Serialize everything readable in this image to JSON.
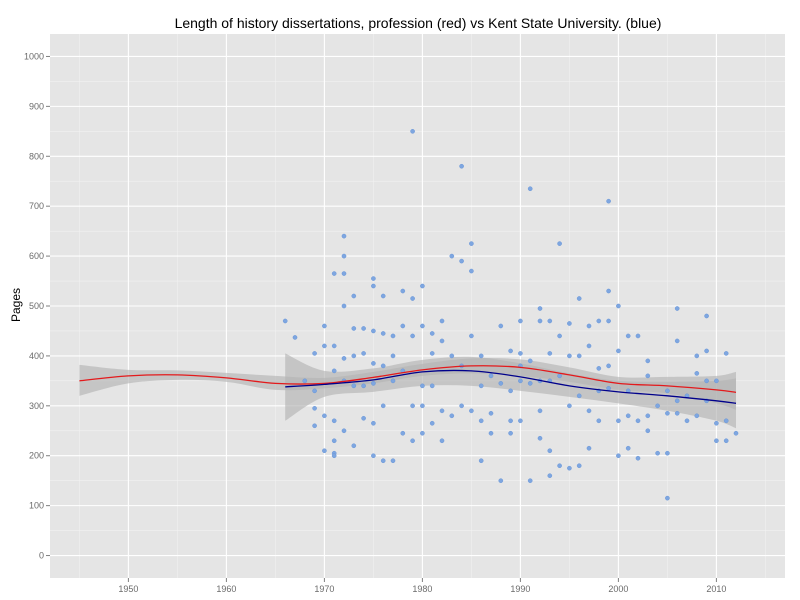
{
  "chart_data": {
    "type": "scatter",
    "title": "Length of history dissertations, profession (red) vs Kent State University. (blue)",
    "xlabel": "",
    "ylabel": "Pages",
    "xlim": [
      1942,
      2017
    ],
    "ylim": [
      -45,
      1045
    ],
    "x_ticks": [
      1950,
      1960,
      1970,
      1980,
      1990,
      2000,
      2010
    ],
    "y_ticks": [
      0,
      100,
      200,
      300,
      400,
      500,
      600,
      700,
      800,
      900,
      1000
    ],
    "grid": true,
    "legend": "none",
    "colors": {
      "panel_background": "#e5e5e5",
      "grid_major": "#ffffff",
      "grid_minor": "#f2f2f2",
      "points": "#7ea6e0",
      "profession_line": "#e31a1c",
      "kent_state_line": "#00008b",
      "confidence_band": "#b3b3b3"
    },
    "series": [
      {
        "key": "kent_state_points",
        "mark": "points",
        "x": [
          1966,
          1967,
          1968,
          1969,
          1969,
          1969,
          1969,
          1970,
          1970,
          1970,
          1970,
          1971,
          1971,
          1971,
          1971,
          1971,
          1971,
          1971,
          1972,
          1972,
          1972,
          1972,
          1972,
          1972,
          1972,
          1973,
          1973,
          1973,
          1973,
          1973,
          1974,
          1974,
          1974,
          1974,
          1975,
          1975,
          1975,
          1975,
          1975,
          1975,
          1975,
          1976,
          1976,
          1976,
          1976,
          1976,
          1977,
          1977,
          1977,
          1977,
          1978,
          1978,
          1978,
          1978,
          1979,
          1979,
          1979,
          1979,
          1979,
          1980,
          1980,
          1980,
          1980,
          1980,
          1981,
          1981,
          1981,
          1981,
          1982,
          1982,
          1982,
          1982,
          1983,
          1983,
          1983,
          1984,
          1984,
          1984,
          1984,
          1985,
          1985,
          1985,
          1985,
          1986,
          1986,
          1986,
          1986,
          1987,
          1987,
          1987,
          1988,
          1988,
          1988,
          1989,
          1989,
          1989,
          1989,
          1990,
          1990,
          1990,
          1990,
          1990,
          1991,
          1991,
          1991,
          1991,
          1992,
          1992,
          1992,
          1992,
          1992,
          1993,
          1993,
          1993,
          1993,
          1993,
          1994,
          1994,
          1994,
          1994,
          1995,
          1995,
          1995,
          1995,
          1996,
          1996,
          1996,
          1996,
          1997,
          1997,
          1997,
          1997,
          1998,
          1998,
          1998,
          1998,
          1999,
          1999,
          1999,
          1999,
          1999,
          2000,
          2000,
          2000,
          2000,
          2001,
          2001,
          2001,
          2001,
          2002,
          2002,
          2002,
          2003,
          2003,
          2003,
          2003,
          2004,
          2004,
          2005,
          2005,
          2005,
          2005,
          2006,
          2006,
          2006,
          2006,
          2007,
          2007,
          2008,
          2008,
          2008,
          2009,
          2009,
          2009,
          2009,
          2010,
          2010,
          2010,
          2011,
          2011,
          2011,
          2012
        ],
        "y": [
          470,
          437,
          350,
          405,
          330,
          295,
          260,
          460,
          420,
          280,
          210,
          565,
          420,
          370,
          270,
          230,
          205,
          200,
          640,
          600,
          565,
          500,
          395,
          350,
          250,
          520,
          455,
          400,
          340,
          220,
          455,
          405,
          340,
          275,
          555,
          540,
          450,
          385,
          345,
          265,
          200,
          520,
          445,
          380,
          300,
          190,
          440,
          400,
          350,
          190,
          530,
          460,
          370,
          245,
          850,
          515,
          440,
          300,
          230,
          540,
          460,
          340,
          300,
          245,
          445,
          405,
          340,
          265,
          470,
          430,
          290,
          230,
          600,
          400,
          280,
          780,
          590,
          380,
          300,
          625,
          570,
          440,
          290,
          400,
          340,
          270,
          190,
          360,
          285,
          245,
          460,
          345,
          150,
          410,
          330,
          270,
          245,
          470,
          405,
          380,
          350,
          270,
          735,
          390,
          345,
          150,
          495,
          470,
          350,
          290,
          235,
          470,
          405,
          350,
          210,
          160,
          625,
          440,
          360,
          180,
          465,
          400,
          300,
          175,
          515,
          400,
          320,
          180,
          460,
          420,
          290,
          215,
          470,
          375,
          330,
          270,
          710,
          530,
          470,
          380,
          335,
          500,
          410,
          270,
          200,
          440,
          330,
          280,
          215,
          440,
          270,
          195,
          390,
          360,
          280,
          250,
          300,
          205,
          330,
          285,
          205,
          115,
          495,
          430,
          310,
          285,
          320,
          270,
          400,
          365,
          280,
          480,
          410,
          350,
          310,
          230,
          265,
          350,
          405,
          270,
          230,
          245
        ]
      },
      {
        "key": "profession",
        "mark": "line",
        "x": [
          1945,
          1950,
          1955,
          1960,
          1965,
          1970,
          1975,
          1980,
          1985,
          1990,
          1995,
          2000,
          2005,
          2010,
          2012
        ],
        "y": [
          350,
          360,
          362,
          356,
          345,
          345,
          357,
          372,
          380,
          377,
          362,
          345,
          340,
          332,
          327
        ],
        "band_lower": [
          320,
          345,
          352,
          348,
          332,
          335,
          345,
          360,
          365,
          360,
          348,
          332,
          325,
          305,
          292
        ],
        "band_upper": [
          382,
          372,
          371,
          366,
          360,
          356,
          368,
          384,
          395,
          393,
          377,
          358,
          358,
          360,
          368
        ]
      },
      {
        "key": "kent_state",
        "mark": "line",
        "x": [
          1966,
          1970,
          1975,
          1980,
          1985,
          1990,
          1995,
          2000,
          2005,
          2010,
          2012
        ],
        "y": [
          338,
          343,
          352,
          368,
          370,
          358,
          340,
          328,
          320,
          310,
          305
        ],
        "band_lower": [
          270,
          318,
          328,
          340,
          340,
          330,
          318,
          305,
          290,
          270,
          255
        ],
        "band_upper": [
          405,
          370,
          375,
          392,
          398,
          385,
          365,
          350,
          348,
          350,
          355
        ]
      }
    ]
  }
}
